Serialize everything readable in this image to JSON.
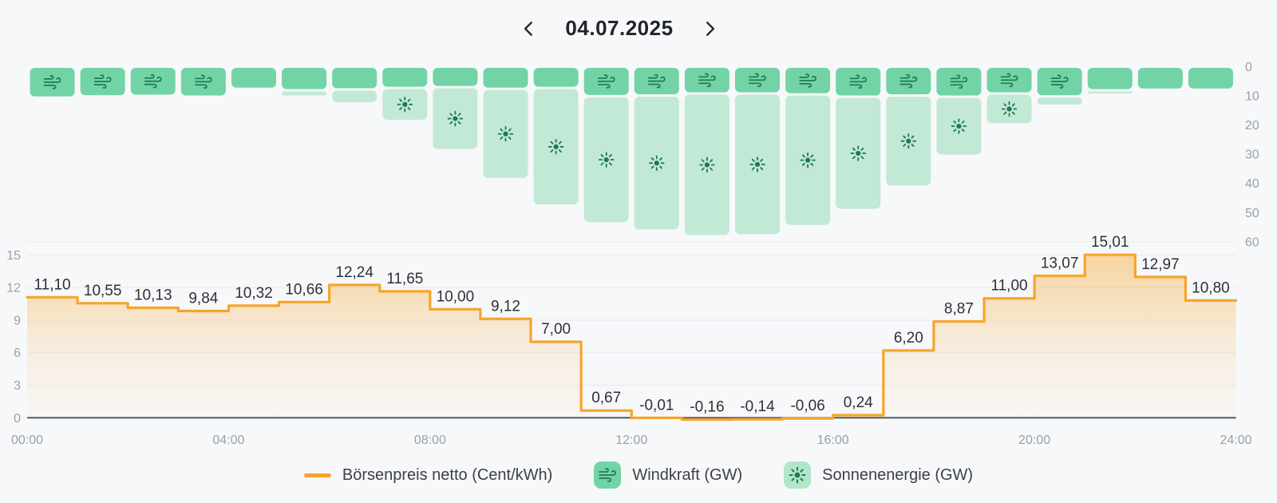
{
  "header": {
    "date": "04.07.2025"
  },
  "legend": {
    "items": [
      {
        "label": "Börsenpreis netto (Cent/kWh)",
        "swatch": "line-dash"
      },
      {
        "label": "Windkraft (GW)",
        "icon": "wind-icon"
      },
      {
        "label": "Sonnenenergie (GW)",
        "icon": "sun-icon"
      }
    ]
  },
  "colors": {
    "background": "#f7f8f9",
    "price_line": "#f7a42b",
    "wind_bar": "#72d4a6",
    "solar_bar": "#c2e9d5",
    "legend_sun_bg": "#b2e6ca",
    "icon_glyph": "#1e7a53",
    "gridline": "#e9ecf2",
    "axis_line": "#515a68",
    "axis_text": "#9aa1a8",
    "data_label": "#2e3136",
    "date_text": "#212428",
    "legend_text": "#3c4046"
  },
  "chart_data": {
    "type": "combo",
    "title": "",
    "price": {
      "name": "Börsenpreis netto (Cent/kWh)",
      "type": "step-line",
      "unit": "Cent/kWh",
      "values": [
        11.1,
        10.55,
        10.13,
        9.84,
        10.32,
        10.66,
        12.24,
        11.65,
        10.0,
        9.12,
        7.0,
        0.67,
        -0.01,
        -0.16,
        -0.14,
        -0.06,
        0.24,
        6.2,
        8.87,
        11.0,
        13.07,
        15.01,
        12.97,
        10.8
      ],
      "labels": [
        "11,10",
        "10,55",
        "10,13",
        "9,84",
        "10,32",
        "10,66",
        "12,24",
        "11,65",
        "10,00",
        "9,12",
        "7,00",
        "0,67",
        "-0,01",
        "-0,16",
        "-0,14",
        "-0,06",
        "0,24",
        "6,20",
        "8,87",
        "11,00",
        "13,07",
        "15,01",
        "12,97",
        "10,80"
      ]
    },
    "wind": {
      "name": "Windkraft (GW)",
      "type": "bar-from-top",
      "unit": "GW",
      "values": [
        10.6,
        10.2,
        10.0,
        10.3,
        7.6,
        8.1,
        7.8,
        7.3,
        7.0,
        7.6,
        7.3,
        10.1,
        9.9,
        9.2,
        9.2,
        9.5,
        10.3,
        9.9,
        10.3,
        9.2,
        10.2,
        8.1,
        7.9,
        7.9
      ]
    },
    "solar": {
      "name": "Sonnenenergie (GW)",
      "type": "bar-from-top",
      "unit": "GW",
      "values": [
        0,
        0,
        0,
        0,
        0,
        2.2,
        4.8,
        11.3,
        21.6,
        30.9,
        40.3,
        43.6,
        46.3,
        48.9,
        48.6,
        45.1,
        38.8,
        31.2,
        20.2,
        10.6,
        3.2,
        1.5,
        0,
        0
      ]
    },
    "price_axis": {
      "side": "left",
      "min": 0,
      "max": 15,
      "ticks": [
        0,
        3,
        6,
        9,
        12,
        15
      ]
    },
    "gw_axis": {
      "side": "right",
      "inverted": true,
      "min": 0,
      "max": 60,
      "ticks": [
        0,
        10,
        20,
        30,
        40,
        50,
        60
      ]
    },
    "x_axis": {
      "ticks": [
        "00:00",
        "04:00",
        "08:00",
        "12:00",
        "16:00",
        "20:00",
        "24:00"
      ],
      "hours": 24
    },
    "grid": "horizontal-only",
    "legend_position": "bottom"
  }
}
